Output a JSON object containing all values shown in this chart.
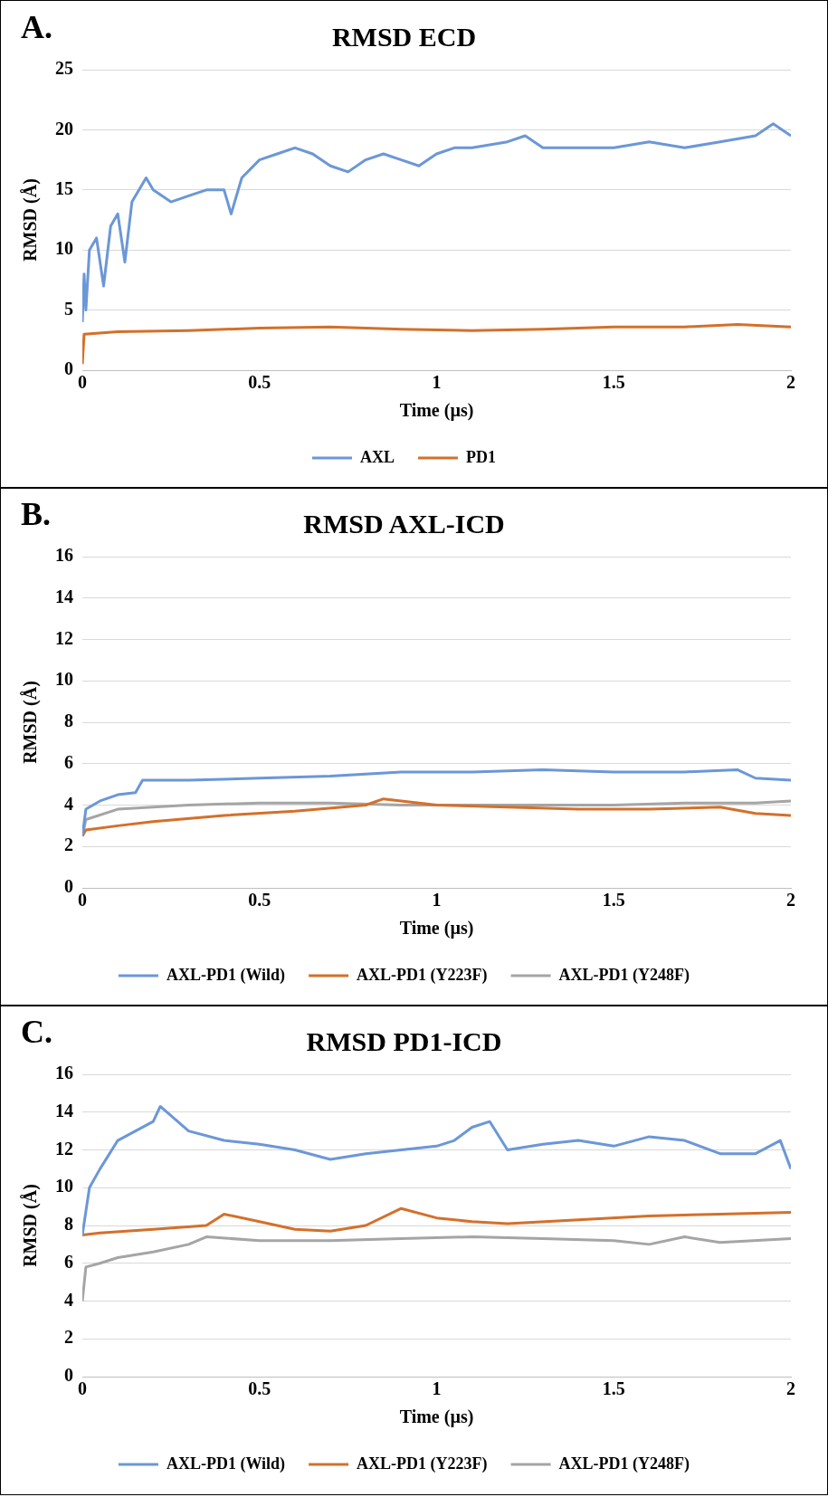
{
  "chart_data": [
    {
      "type": "line",
      "title": "RMSD ECD",
      "xlabel": "Time (µs)",
      "ylabel": "RMSD (Å)",
      "annotations": [
        "A."
      ],
      "xlim": [
        0,
        2
      ],
      "xticks": [
        0,
        0.5,
        1,
        1.5,
        2
      ],
      "ylim": [
        0,
        25
      ],
      "yticks": [
        0,
        5,
        10,
        15,
        20,
        25
      ],
      "grid": "y",
      "legend": "bottom",
      "marker": "none",
      "line_style": "solid",
      "series": [
        {
          "name": "AXL",
          "color": "#6b97d8",
          "x": [
            0,
            0.005,
            0.01,
            0.02,
            0.04,
            0.06,
            0.08,
            0.1,
            0.12,
            0.14,
            0.16,
            0.18,
            0.2,
            0.25,
            0.3,
            0.35,
            0.4,
            0.42,
            0.45,
            0.5,
            0.55,
            0.6,
            0.65,
            0.7,
            0.75,
            0.8,
            0.85,
            0.9,
            0.95,
            1.0,
            1.05,
            1.1,
            1.2,
            1.25,
            1.3,
            1.4,
            1.5,
            1.6,
            1.7,
            1.8,
            1.9,
            1.95,
            2.0
          ],
          "values": [
            4,
            8,
            5,
            10,
            11,
            7,
            12,
            13,
            9,
            14,
            15,
            16,
            15,
            14,
            14.5,
            15,
            15,
            13,
            16,
            17.5,
            18,
            18.5,
            18,
            17,
            16.5,
            17.5,
            18,
            17.5,
            17,
            18,
            18.5,
            18.5,
            19,
            19.5,
            18.5,
            18.5,
            18.5,
            19,
            18.5,
            19,
            19.5,
            20.5,
            19.5
          ]
        },
        {
          "name": "PD1",
          "color": "#d4702b",
          "x": [
            0,
            0.005,
            0.1,
            0.3,
            0.5,
            0.7,
            0.9,
            1.1,
            1.3,
            1.5,
            1.7,
            1.85,
            2
          ],
          "values": [
            0.5,
            3,
            3.2,
            3.3,
            3.5,
            3.6,
            3.4,
            3.3,
            3.4,
            3.6,
            3.6,
            3.8,
            3.6
          ]
        }
      ]
    },
    {
      "type": "line",
      "title": "RMSD AXL-ICD",
      "xlabel": "Time (µs)",
      "ylabel": "RMSD (Å)",
      "annotations": [
        "B."
      ],
      "xlim": [
        0,
        2
      ],
      "xticks": [
        0,
        0.5,
        1,
        1.5,
        2
      ],
      "ylim": [
        0,
        16
      ],
      "yticks": [
        0,
        2,
        4,
        6,
        8,
        10,
        12,
        14,
        16
      ],
      "grid": "y",
      "legend": "bottom",
      "marker": "none",
      "line_style": "solid",
      "series": [
        {
          "name": "AXL-PD1 (Wild)",
          "color": "#6b97d8",
          "x": [
            0,
            0.01,
            0.05,
            0.1,
            0.15,
            0.17,
            0.3,
            0.5,
            0.7,
            0.9,
            1.1,
            1.3,
            1.5,
            1.7,
            1.85,
            1.9,
            2
          ],
          "values": [
            2.5,
            3.8,
            4.2,
            4.5,
            4.6,
            5.2,
            5.2,
            5.3,
            5.4,
            5.6,
            5.6,
            5.7,
            5.6,
            5.6,
            5.7,
            5.3,
            5.2
          ]
        },
        {
          "name": "AXL-PD1 (Y223F)",
          "color": "#d4702b",
          "x": [
            0,
            0.01,
            0.1,
            0.2,
            0.4,
            0.6,
            0.8,
            0.85,
            1,
            1.2,
            1.4,
            1.6,
            1.8,
            1.9,
            2
          ],
          "values": [
            2.5,
            2.8,
            3.0,
            3.2,
            3.5,
            3.7,
            4.0,
            4.3,
            4.0,
            3.9,
            3.8,
            3.8,
            3.9,
            3.6,
            3.5
          ]
        },
        {
          "name": "AXL-PD1 (Y248F)",
          "color": "#a5a5a5",
          "x": [
            0,
            0.01,
            0.1,
            0.3,
            0.5,
            0.7,
            0.9,
            1.1,
            1.3,
            1.5,
            1.7,
            1.9,
            2
          ],
          "values": [
            2.5,
            3.3,
            3.8,
            4.0,
            4.1,
            4.1,
            4.0,
            4.0,
            4.0,
            4.0,
            4.1,
            4.1,
            4.2
          ]
        }
      ]
    },
    {
      "type": "line",
      "title": "RMSD PD1-ICD",
      "xlabel": "Time (µs)",
      "ylabel": "RMSD (Å)",
      "annotations": [
        "C."
      ],
      "xlim": [
        0,
        2
      ],
      "xticks": [
        0,
        0.5,
        1,
        1.5,
        2
      ],
      "ylim": [
        0,
        16
      ],
      "yticks": [
        0,
        2,
        4,
        6,
        8,
        10,
        12,
        14,
        16
      ],
      "grid": "y",
      "legend": "bottom",
      "marker": "none",
      "line_style": "solid",
      "series": [
        {
          "name": "AXL-PD1 (Wild)",
          "color": "#6b97d8",
          "x": [
            0,
            0.02,
            0.05,
            0.1,
            0.15,
            0.2,
            0.22,
            0.3,
            0.4,
            0.5,
            0.6,
            0.7,
            0.8,
            0.9,
            1,
            1.05,
            1.1,
            1.15,
            1.2,
            1.3,
            1.4,
            1.5,
            1.6,
            1.7,
            1.8,
            1.9,
            1.97,
            2
          ],
          "values": [
            7.5,
            10,
            11,
            12.5,
            13,
            13.5,
            14.3,
            13,
            12.5,
            12.3,
            12,
            11.5,
            11.8,
            12,
            12.2,
            12.5,
            13.2,
            13.5,
            12,
            12.3,
            12.5,
            12.2,
            12.7,
            12.5,
            11.8,
            11.8,
            12.5,
            11
          ]
        },
        {
          "name": "AXL-PD1 (Y223F)",
          "color": "#d4702b",
          "x": [
            0,
            0.05,
            0.2,
            0.35,
            0.4,
            0.5,
            0.6,
            0.7,
            0.8,
            0.9,
            1,
            1.1,
            1.2,
            1.4,
            1.6,
            1.8,
            2
          ],
          "values": [
            7.5,
            7.6,
            7.8,
            8,
            8.6,
            8.2,
            7.8,
            7.7,
            8,
            8.9,
            8.4,
            8.2,
            8.1,
            8.3,
            8.5,
            8.6,
            8.7
          ]
        },
        {
          "name": "AXL-PD1 (Y248F)",
          "color": "#a5a5a5",
          "x": [
            0,
            0.01,
            0.05,
            0.1,
            0.2,
            0.3,
            0.35,
            0.5,
            0.7,
            0.9,
            1.1,
            1.3,
            1.5,
            1.6,
            1.7,
            1.8,
            2
          ],
          "values": [
            4,
            5.8,
            6,
            6.3,
            6.6,
            7,
            7.4,
            7.2,
            7.2,
            7.3,
            7.4,
            7.3,
            7.2,
            7,
            7.4,
            7.1,
            7.3
          ]
        }
      ]
    }
  ]
}
